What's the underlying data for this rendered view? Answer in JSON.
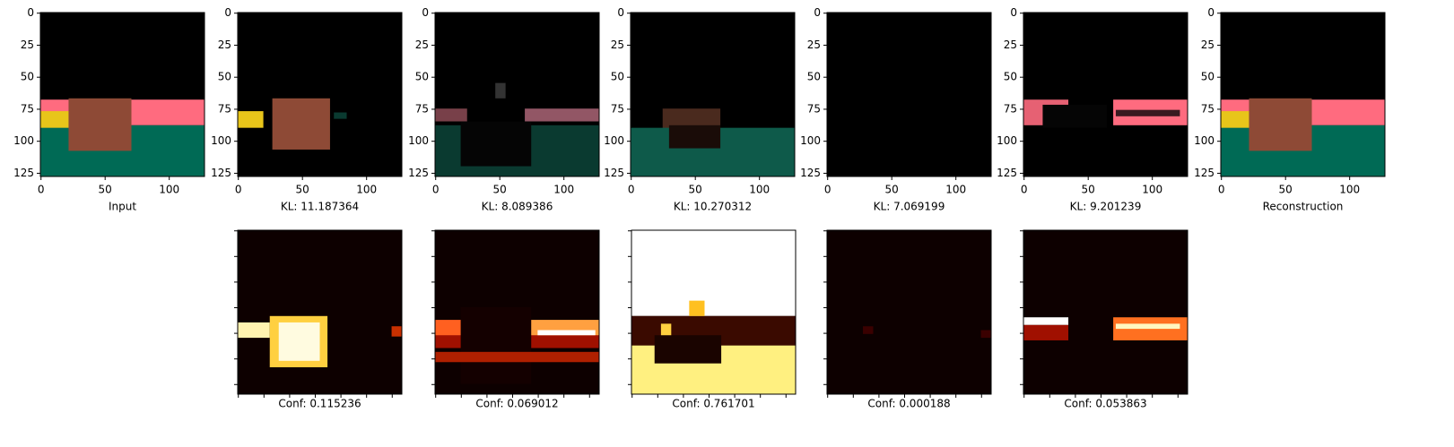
{
  "top_panels": [
    {
      "caption": "Input"
    },
    {
      "caption": "KL: 11.187364"
    },
    {
      "caption": "KL: 8.089386"
    },
    {
      "caption": "KL: 10.270312"
    },
    {
      "caption": "KL: 7.069199"
    },
    {
      "caption": "KL: 9.201239"
    },
    {
      "caption": "Reconstruction"
    }
  ],
  "bottom_panels": [
    {
      "caption": "Conf: 0.115236"
    },
    {
      "caption": "Conf: 0.069012"
    },
    {
      "caption": "Conf: 0.761701"
    },
    {
      "caption": "Conf: 0.000188"
    },
    {
      "caption": "Conf: 0.053863"
    }
  ],
  "lim": [
    -0.5,
    127.5
  ],
  "xticks": [
    0,
    50,
    100
  ],
  "yticks": [
    0,
    25,
    50,
    75,
    100,
    125
  ],
  "bottom_ticks": [
    0,
    20,
    40,
    60,
    80,
    100,
    120
  ]
}
